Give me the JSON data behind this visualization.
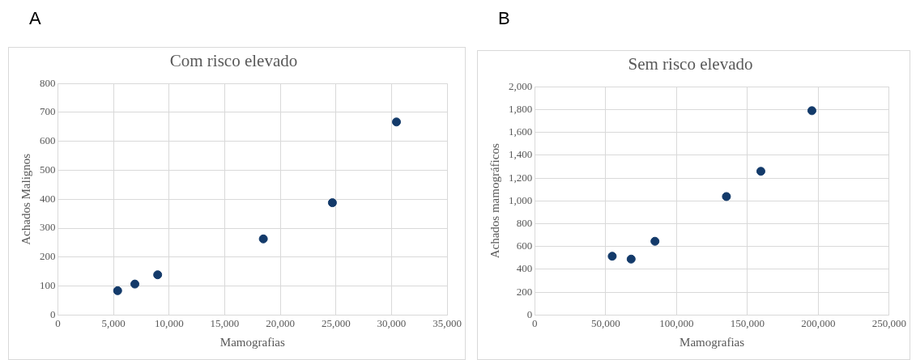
{
  "chart_data": [
    {
      "type": "scatter",
      "title": "Com risco elevado",
      "xlabel": "Mamografias",
      "ylabel": "Achados Malignos",
      "annotations": [
        "A"
      ],
      "marker": "circle",
      "grid": true,
      "series": [
        {
          "color": "#133a6a",
          "x": [
            5370,
            6920,
            8970,
            18470,
            24680,
            30440
          ],
          "values": [
            84,
            107,
            139,
            263,
            388,
            667
          ]
        }
      ],
      "xlim": [
        0,
        35000
      ],
      "ylim": [
        0,
        800
      ],
      "xticks": [
        0,
        {
          "value": 5000,
          "label": "5,000"
        },
        {
          "value": 10000,
          "label": "10,000"
        },
        {
          "value": 15000,
          "label": "15,000"
        },
        {
          "value": 20000,
          "label": "20,000"
        },
        {
          "value": 25000,
          "label": "25,000"
        },
        {
          "value": 30000,
          "label": "30,000"
        },
        {
          "value": 35000,
          "label": "35,000"
        }
      ],
      "yticks": [
        0,
        100,
        200,
        300,
        400,
        500,
        600,
        700,
        800
      ]
    },
    {
      "type": "scatter",
      "title": "Sem risco elevado",
      "xlabel": "Mamografias",
      "ylabel": "Achados mamográficos",
      "annotations": [
        "B"
      ],
      "marker": "circle",
      "grid": true,
      "series": [
        {
          "color": "#133a6a",
          "x": [
            54650,
            68000,
            84800,
            135200,
            159500,
            195500
          ],
          "values": [
            515,
            490,
            646,
            1038,
            1259,
            1790
          ]
        }
      ],
      "xlim": [
        0,
        250000
      ],
      "ylim": [
        0,
        2000
      ],
      "xticks": [
        0,
        {
          "value": 50000,
          "label": "50,000"
        },
        {
          "value": 100000,
          "label": "100,000"
        },
        {
          "value": 150000,
          "label": "150,000"
        },
        {
          "value": 200000,
          "label": "200,000"
        },
        {
          "value": 250000,
          "label": "250,000"
        }
      ],
      "yticks": [
        0,
        200,
        400,
        600,
        800,
        {
          "value": 1000,
          "label": "1,000"
        },
        {
          "value": 1200,
          "label": "1,200"
        },
        {
          "value": 1400,
          "label": "1,400"
        },
        {
          "value": 1600,
          "label": "1,600"
        },
        {
          "value": 1800,
          "label": "1,800"
        },
        {
          "value": 2000,
          "label": "2,000"
        }
      ]
    }
  ]
}
